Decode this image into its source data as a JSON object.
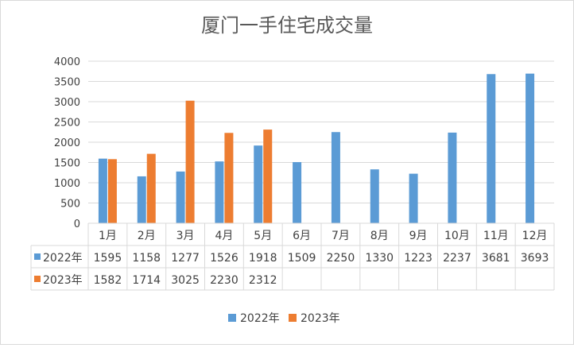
{
  "chart_data": {
    "type": "bar",
    "title": "厦门一手住宅成交量",
    "categories": [
      "1月",
      "2月",
      "3月",
      "4月",
      "5月",
      "6月",
      "7月",
      "8月",
      "9月",
      "10月",
      "11月",
      "12月"
    ],
    "series": [
      {
        "name": "2022年",
        "color": "#5B9BD5",
        "values": [
          1595,
          1158,
          1277,
          1526,
          1918,
          1509,
          2250,
          1330,
          1223,
          2237,
          3681,
          3693
        ]
      },
      {
        "name": "2023年",
        "color": "#ED7D31",
        "values": [
          1582,
          1714,
          3025,
          2230,
          2312,
          null,
          null,
          null,
          null,
          null,
          null,
          null
        ]
      }
    ],
    "ylim": [
      0,
      4000
    ],
    "yticks": [
      0,
      500,
      1000,
      1500,
      2000,
      2500,
      3000,
      3500,
      4000
    ],
    "grid": true,
    "data_table": true,
    "legend_position": "bottom"
  }
}
